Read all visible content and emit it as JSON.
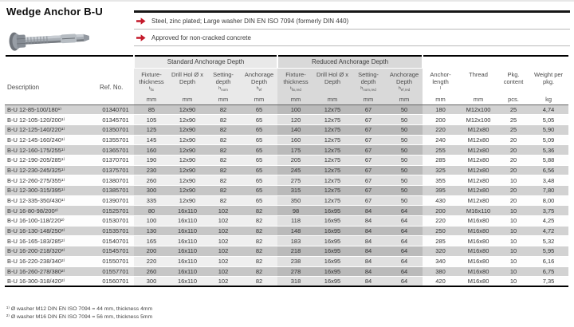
{
  "page": {
    "title": "Wedge Anchor B-U",
    "accent_color": "#c41a2b",
    "features": [
      "Steel, zinc plated; Large washer DIN EN ISO 7094 (formerly DIN 440)",
      "Approved for non-cracked concrete"
    ]
  },
  "table": {
    "groups": {
      "standard": "Standard Anchorage Depth",
      "reduced": "Reduced Anchorage Depth"
    },
    "columns": [
      {
        "id": "description",
        "label": "Description",
        "group": "none",
        "align": "left"
      },
      {
        "id": "ref_no",
        "label": "Ref. No.",
        "group": "none",
        "align": "left"
      },
      {
        "id": "std_fixture",
        "label": "Fixture-thickness",
        "symbol_base": "t",
        "symbol_sub": "fix",
        "unit": "mm",
        "group": "standard"
      },
      {
        "id": "std_drill",
        "label": "Drill Hol Ø x Depth",
        "unit": "mm",
        "group": "standard"
      },
      {
        "id": "std_setting",
        "label": "Setting-depth",
        "symbol_base": "h",
        "symbol_sub": "nom",
        "unit": "mm",
        "group": "standard"
      },
      {
        "id": "std_anchorage",
        "label": "Anchorage Depth",
        "symbol_base": "h",
        "symbol_sub": "ef",
        "unit": "mm",
        "group": "standard"
      },
      {
        "id": "red_fixture",
        "label": "Fixture-thickness",
        "symbol_base": "t",
        "symbol_sub": "fix,red",
        "unit": "mm",
        "group": "reduced"
      },
      {
        "id": "red_drill",
        "label": "Drill Hol Ø x Depth",
        "unit": "mm",
        "group": "reduced"
      },
      {
        "id": "red_setting",
        "label": "Setting-depth",
        "symbol_base": "h",
        "symbol_sub": "nom,red",
        "unit": "mm",
        "group": "reduced"
      },
      {
        "id": "red_anchorage",
        "label": "Anchorage Depth",
        "symbol_base": "h",
        "symbol_sub": "ef,red",
        "unit": "mm",
        "group": "reduced"
      },
      {
        "id": "length",
        "label": "Anchor-length",
        "symbol_base": "l",
        "symbol_sub": "",
        "unit": "mm",
        "group": "none"
      },
      {
        "id": "thread",
        "label": "Thread",
        "unit": "mm",
        "group": "none"
      },
      {
        "id": "pkg",
        "label": "Pkg. content",
        "unit": "pcs.",
        "group": "none"
      },
      {
        "id": "weight",
        "label": "Weight per pkg.",
        "unit": "kg",
        "group": "none"
      }
    ],
    "rows": [
      [
        "B-U 12-85-100/180¹⁾",
        "01340701",
        "85",
        "12x90",
        "82",
        "65",
        "100",
        "12x75",
        "67",
        "50",
        "180",
        "M12x100",
        "25",
        "4,74"
      ],
      [
        "B-U 12-105-120/200¹⁾",
        "01345701",
        "105",
        "12x90",
        "82",
        "65",
        "120",
        "12x75",
        "67",
        "50",
        "200",
        "M12x100",
        "25",
        "5,05"
      ],
      [
        "B-U 12-125-140/220¹⁾",
        "01350701",
        "125",
        "12x90",
        "82",
        "65",
        "140",
        "12x75",
        "67",
        "50",
        "220",
        "M12x80",
        "25",
        "5,90"
      ],
      [
        "B-U 12-145-160/240¹⁾",
        "01355701",
        "145",
        "12x90",
        "82",
        "65",
        "160",
        "12x75",
        "67",
        "50",
        "240",
        "M12x80",
        "20",
        "5,09"
      ],
      [
        "B-U 12-160-175/255¹⁾",
        "01365701",
        "160",
        "12x90",
        "82",
        "65",
        "175",
        "12x75",
        "67",
        "50",
        "255",
        "M12x80",
        "20",
        "5,36"
      ],
      [
        "B-U 12-190-205/285¹⁾",
        "01370701",
        "190",
        "12x90",
        "82",
        "65",
        "205",
        "12x75",
        "67",
        "50",
        "285",
        "M12x80",
        "20",
        "5,88"
      ],
      [
        "B-U 12-230-245/325¹⁾",
        "01375701",
        "230",
        "12x90",
        "82",
        "65",
        "245",
        "12x75",
        "67",
        "50",
        "325",
        "M12x80",
        "20",
        "6,56"
      ],
      [
        "B-U 12-260-275/355¹⁾",
        "01380701",
        "260",
        "12x90",
        "82",
        "65",
        "275",
        "12x75",
        "67",
        "50",
        "355",
        "M12x80",
        "10",
        "3,48"
      ],
      [
        "B-U 12-300-315/395¹⁾",
        "01385701",
        "300",
        "12x90",
        "82",
        "65",
        "315",
        "12x75",
        "67",
        "50",
        "395",
        "M12x80",
        "20",
        "7,80"
      ],
      [
        "B-U 12-335-350/430¹⁾",
        "01390701",
        "335",
        "12x90",
        "82",
        "65",
        "350",
        "12x75",
        "67",
        "50",
        "430",
        "M12x80",
        "20",
        "8,00"
      ],
      [
        "B-U 16-80-98/200²⁾",
        "01525701",
        "80",
        "16x110",
        "102",
        "82",
        "98",
        "16x95",
        "84",
        "64",
        "200",
        "M16x110",
        "10",
        "3,75"
      ],
      [
        "B-U 16-100-118/220²⁾",
        "01530701",
        "100",
        "16x110",
        "102",
        "82",
        "118",
        "16x95",
        "84",
        "64",
        "220",
        "M16x80",
        "10",
        "4,25"
      ],
      [
        "B-U 16-130-148/250²⁾",
        "01535701",
        "130",
        "16x110",
        "102",
        "82",
        "148",
        "16x95",
        "84",
        "64",
        "250",
        "M16x80",
        "10",
        "4,72"
      ],
      [
        "B-U 16-165-183/285²⁾",
        "01540701",
        "165",
        "16x110",
        "102",
        "82",
        "183",
        "16x95",
        "84",
        "64",
        "285",
        "M16x80",
        "10",
        "5,32"
      ],
      [
        "B-U 16-200-218/320²⁾",
        "01545701",
        "200",
        "16x110",
        "102",
        "82",
        "218",
        "16x95",
        "84",
        "64",
        "320",
        "M16x80",
        "10",
        "5,95"
      ],
      [
        "B-U 16-220-238/340²⁾",
        "01550701",
        "220",
        "16x110",
        "102",
        "82",
        "238",
        "16x95",
        "84",
        "64",
        "340",
        "M16x80",
        "10",
        "6,16"
      ],
      [
        "B-U 16-260-278/380²⁾",
        "01557701",
        "260",
        "16x110",
        "102",
        "82",
        "278",
        "16x95",
        "84",
        "64",
        "380",
        "M16x80",
        "10",
        "6,75"
      ],
      [
        "B-U 16-300-318/420²⁾",
        "01560701",
        "300",
        "16x110",
        "102",
        "82",
        "318",
        "16x95",
        "84",
        "64",
        "420",
        "M16x80",
        "10",
        "7,35"
      ]
    ],
    "footnotes": [
      "¹⁾ Ø washer M12 DIN EN ISO 7094 = 44 mm, thickness 4mm",
      "²⁾ Ø washer M16 DIN EN ISO 7094 = 56 mm, thickness 5mm"
    ]
  }
}
